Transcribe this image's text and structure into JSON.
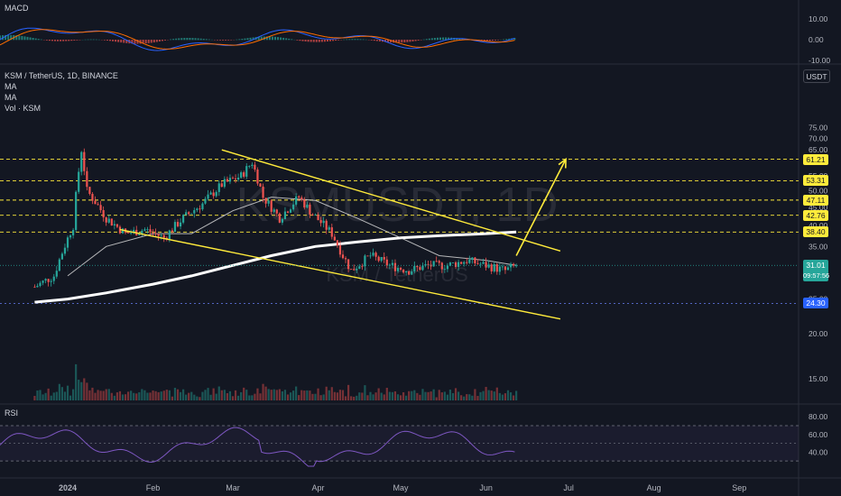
{
  "panels": {
    "macd_title": "MACD",
    "rsi_title": "RSI",
    "currency_badge": "USDT"
  },
  "legend": {
    "symbol": "KSM / TetherUS, 1D, BINANCE",
    "ma1": "MA",
    "ma2": "MA",
    "volume": "Vol · KSM"
  },
  "watermark": {
    "symbol": "KSMUSDT, 1D",
    "name": "KSM / TetherUS"
  },
  "current_price": {
    "value": "31.01",
    "countdown": "09:57:56"
  },
  "colors": {
    "background": "#131722",
    "up": "#26a69a",
    "down": "#ef5350",
    "pattern_lines": "#ffeb3b",
    "level_lines": "#ffeb3b",
    "ma_fast": "#e0e0e0",
    "ma_slow": "#ffffff",
    "macd_line": "#2962ff",
    "signal_line": "#ff6d00",
    "rsi_line": "#7e57c2",
    "support_dotted": "#5b6fd6"
  },
  "chart_data": [
    {
      "type": "line",
      "title": "",
      "scale": "log",
      "y_ticks": [
        "75.00",
        "70.00",
        "65.00",
        "60.00",
        "55.00",
        "50.00",
        "45.00",
        "40.00",
        "35.00",
        "30.00",
        "25.00",
        "20.00",
        "15.00"
      ],
      "x_ticks": [
        "2024",
        "Feb",
        "Mar",
        "Apr",
        "May",
        "Jun",
        "Jul",
        "Aug",
        "Sep"
      ],
      "horizontal_levels": [
        "61.21",
        "53.31",
        "47.11",
        "42.76",
        "38.40",
        "24.30"
      ],
      "level_values": [
        61.21,
        53.31,
        47.11,
        42.76,
        38.4,
        24.3
      ],
      "current_price": 31.01,
      "price_path": {
        "x": [
          "2023-12-20",
          "2023-12-27",
          "2024-01-03",
          "2024-01-06",
          "2024-01-08",
          "2024-01-15",
          "2024-01-22",
          "2024-01-29",
          "2024-02-05",
          "2024-02-12",
          "2024-02-19",
          "2024-02-26",
          "2024-03-04",
          "2024-03-08",
          "2024-03-12",
          "2024-03-18",
          "2024-03-25",
          "2024-03-30",
          "2024-04-06",
          "2024-04-10",
          "2024-04-13",
          "2024-04-20",
          "2024-04-27",
          "2024-05-04",
          "2024-05-11",
          "2024-05-18",
          "2024-05-25",
          "2024-06-01",
          "2024-06-08",
          "2024-06-12"
        ],
        "y": [
          27,
          29,
          40,
          65,
          50,
          42,
          38,
          39,
          37,
          42,
          46,
          52,
          55,
          60,
          48,
          42,
          48,
          43,
          38,
          33,
          30,
          33,
          31,
          30,
          31,
          31,
          32,
          31,
          30,
          31.01
        ]
      },
      "pattern": {
        "upper_line": {
          "x": [
            "2024-02-26",
            "2024-06-28"
          ],
          "y": [
            65,
            34
          ]
        },
        "lower_line": {
          "x": [
            "2024-01-20",
            "2024-06-28"
          ],
          "y": [
            39,
            22
          ]
        },
        "projection_arrow": {
          "x": [
            "2024-06-12",
            "2024-06-30"
          ],
          "y": [
            33,
            61.21
          ]
        }
      },
      "ma_fast": {
        "x": [
          "2024-01-01",
          "2024-01-15",
          "2024-02-01",
          "2024-02-15",
          "2024-03-01",
          "2024-03-15",
          "2024-03-31",
          "2024-04-15",
          "2024-05-01",
          "2024-05-15",
          "2024-06-01",
          "2024-06-12"
        ],
        "y": [
          29,
          35,
          38,
          38,
          44,
          48,
          47,
          42,
          37,
          33,
          32,
          31
        ]
      },
      "ma_slow": {
        "x": [
          "2023-12-20",
          "2024-01-01",
          "2024-01-15",
          "2024-02-01",
          "2024-02-15",
          "2024-03-01",
          "2024-03-15",
          "2024-03-31",
          "2024-04-15",
          "2024-05-01",
          "2024-05-15",
          "2024-06-01",
          "2024-06-12"
        ],
        "y": [
          24.5,
          25,
          26,
          27.5,
          29,
          31,
          33,
          35,
          36,
          37,
          37.5,
          38,
          38.4
        ]
      }
    },
    {
      "type": "bar",
      "title": "MACD",
      "y_ticks": [
        "10.00",
        "0.00",
        "-10.00"
      ]
    },
    {
      "type": "line",
      "title": "RSI",
      "y_ticks": [
        "80.00",
        "60.00",
        "40.00"
      ],
      "band": [
        70,
        30
      ],
      "ylim": [
        20,
        90
      ]
    }
  ]
}
